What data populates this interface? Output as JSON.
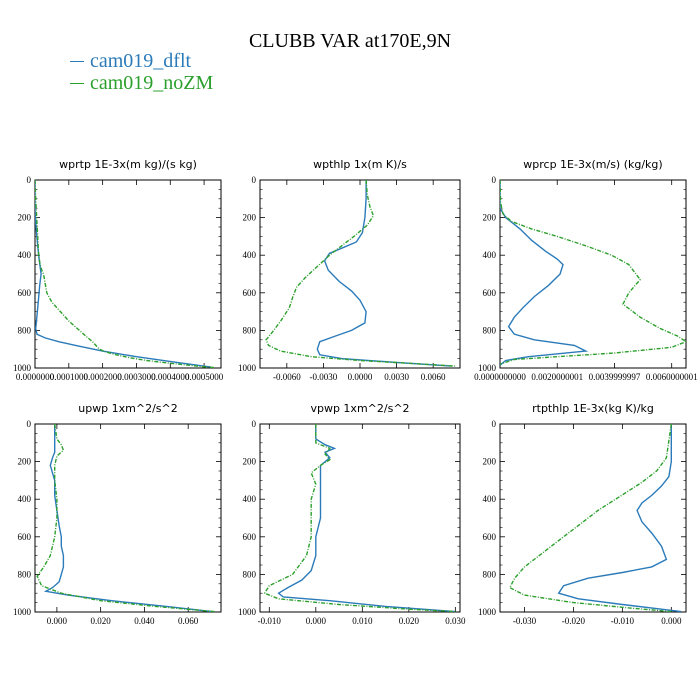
{
  "title": "CLUBB VAR at170E,9N",
  "legend": [
    {
      "name": "cam019_dflt",
      "color": "#2b7bba"
    },
    {
      "name": "cam019_noZM",
      "color": "#2ca02c"
    }
  ],
  "chart_data": [
    {
      "type": "line",
      "title": "wprtp  1E-3x(m kg)/(s kg)",
      "xlim": [
        0,
        0.00055
      ],
      "ylim": [
        1000,
        0
      ],
      "y_inverted": true,
      "xticks": [
        0,
        0.0001,
        0.0002,
        0.0003,
        0.0004,
        0.0005
      ],
      "xtick_labels": [
        "0.0000000",
        "0.0001000",
        "0.0002000",
        "0.0003000",
        "0.0004000",
        "0.0005000"
      ],
      "yticks": [
        0,
        200,
        400,
        600,
        800,
        1000
      ],
      "series": [
        {
          "name": "cam019_dflt",
          "color": "#2b7bba",
          "dashed": false,
          "x": [
            0,
            0,
            3e-06,
            8e-06,
            1.2e-05,
            1.5e-05,
            1.8e-05,
            1.4e-05,
            1e-05,
            6e-06,
            2e-06,
            6e-06,
            3e-05,
            7e-05,
            0.00012,
            0.0002,
            0.0003,
            0.00042,
            0.00052
          ],
          "y": [
            0,
            150,
            250,
            350,
            420,
            460,
            500,
            560,
            640,
            720,
            790,
            820,
            840,
            860,
            880,
            910,
            940,
            970,
            995
          ]
        },
        {
          "name": "cam019_noZM",
          "color": "#2ca02c",
          "dashed": true,
          "x": [
            0,
            2e-06,
            5e-06,
            8e-06,
            1.1e-05,
            1.5e-05,
            2e-05,
            2.5e-05,
            3.5e-05,
            5e-05,
            7.5e-05,
            0.0001,
            0.000125,
            0.00015,
            0.00017,
            0.00018,
            0.00019,
            0.00021,
            0.00024,
            0.00028,
            0.00033,
            0.0004,
            0.00048,
            0.00053
          ],
          "y": [
            0,
            100,
            200,
            300,
            400,
            450,
            480,
            500,
            600,
            650,
            700,
            750,
            790,
            830,
            860,
            880,
            900,
            915,
            930,
            945,
            960,
            975,
            990,
            998
          ]
        }
      ]
    },
    {
      "type": "line",
      "title": "wpthlp  1x(m K)/s",
      "xlim": [
        -0.0082,
        0.0082
      ],
      "ylim": [
        1000,
        0
      ],
      "y_inverted": true,
      "xticks": [
        -0.006,
        -0.003,
        0,
        0.003,
        0.006
      ],
      "xtick_labels": [
        "-0.0060",
        "-0.0030",
        "0.0000",
        "0.0030",
        "0.0060"
      ],
      "yticks": [
        0,
        200,
        400,
        600,
        800,
        1000
      ],
      "series": [
        {
          "name": "cam019_dflt",
          "color": "#2b7bba",
          "dashed": false,
          "x": [
            0.0005,
            0.0005,
            0.0004,
            0.0002,
            -0.0003,
            -0.0014,
            -0.0025,
            -0.0029,
            -0.0026,
            -0.0017,
            -0.0007,
            0,
            0.0005,
            0.0004,
            -0.0007,
            -0.002,
            -0.0033,
            -0.0035,
            -0.0033,
            -0.0015,
            0.003,
            0.0075
          ],
          "y": [
            0,
            100,
            200,
            280,
            330,
            360,
            390,
            430,
            480,
            540,
            590,
            640,
            700,
            760,
            800,
            830,
            860,
            900,
            930,
            950,
            970,
            990
          ]
        },
        {
          "name": "cam019_noZM",
          "color": "#2ca02c",
          "dashed": true,
          "x": [
            0.0005,
            0.0006,
            0.0008,
            0.0011,
            0.0006,
            -0.0005,
            -0.0015,
            -0.0025,
            -0.0035,
            -0.0045,
            -0.0052,
            -0.0055,
            -0.0058,
            -0.0065,
            -0.0072,
            -0.0077,
            -0.0075,
            -0.0065,
            -0.004,
            0,
            0.004,
            0.0078
          ],
          "y": [
            0,
            80,
            140,
            190,
            240,
            300,
            350,
            400,
            460,
            520,
            570,
            620,
            680,
            750,
            810,
            850,
            880,
            910,
            940,
            960,
            975,
            990
          ]
        }
      ]
    },
    {
      "type": "line",
      "title": "wprcp  1E-3x(m/s) (kg/kg)",
      "xlim": [
        0,
        0.0065
      ],
      "ylim": [
        1000,
        0
      ],
      "y_inverted": true,
      "xticks": [
        0,
        0.002,
        0.004,
        0.006
      ],
      "xtick_labels": [
        "0.0000000000",
        "0.0020000001",
        "0.0039999997",
        "0.0060000001"
      ],
      "yticks": [
        0,
        200,
        400,
        600,
        800,
        1000
      ],
      "series": [
        {
          "name": "cam019_dflt",
          "color": "#2b7bba",
          "dashed": false,
          "x": [
            0,
            0,
            0.0002,
            0.0007,
            0.0011,
            0.0016,
            0.002,
            0.0022,
            0.0021,
            0.0017,
            0.0012,
            0.0008,
            0.0005,
            0.0003,
            0.0005,
            0.0012,
            0.0026,
            0.003,
            0.001,
            0.0002,
            0
          ],
          "y": [
            0,
            150,
            200,
            260,
            320,
            380,
            420,
            450,
            500,
            560,
            620,
            680,
            730,
            780,
            820,
            850,
            880,
            910,
            940,
            960,
            985
          ]
        },
        {
          "name": "cam019_noZM",
          "color": "#2ca02c",
          "dashed": true,
          "x": [
            0,
            2e-05,
            0.0001,
            0.0004,
            0.0011,
            0.002,
            0.003,
            0.0039,
            0.0045,
            0.0049,
            0.0045,
            0.0043,
            0.0049,
            0.0056,
            0.0062,
            0.0065,
            0.006,
            0.004,
            0.002,
            0.0005,
            0
          ],
          "y": [
            0,
            120,
            180,
            220,
            260,
            300,
            350,
            400,
            450,
            530,
            600,
            660,
            730,
            790,
            830,
            860,
            890,
            920,
            940,
            955,
            980
          ]
        }
      ]
    },
    {
      "type": "line",
      "title": "upwp  1xm^2/s^2",
      "xlim": [
        -0.01,
        0.075
      ],
      "ylim": [
        1000,
        0
      ],
      "y_inverted": true,
      "xticks": [
        0,
        0.02,
        0.04,
        0.06
      ],
      "xtick_labels": [
        "0.000",
        "0.020",
        "0.040",
        "0.060"
      ],
      "yticks": [
        0,
        200,
        400,
        600,
        800,
        1000
      ],
      "series": [
        {
          "name": "cam019_dflt",
          "color": "#2b7bba",
          "dashed": false,
          "x": [
            -0.001,
            -0.001,
            -0.001,
            -0.002,
            -0.003,
            -0.002,
            -0.001,
            -0.001,
            0,
            0.001,
            0.002,
            0.002,
            0.003,
            0.003,
            0.002,
            0.001,
            -0.002,
            -0.005,
            0.005,
            0.025,
            0.05,
            0.071
          ],
          "y": [
            0,
            100,
            150,
            180,
            220,
            260,
            300,
            380,
            460,
            540,
            600,
            650,
            700,
            760,
            800,
            840,
            870,
            890,
            910,
            940,
            970,
            998
          ]
        },
        {
          "name": "cam019_noZM",
          "color": "#2ca02c",
          "dashed": true,
          "x": [
            -0.001,
            0,
            0.002,
            0.003,
            0,
            -0.001,
            -0.001,
            0,
            0,
            -0.001,
            -0.003,
            -0.006,
            -0.009,
            -0.007,
            0.002,
            0.02,
            0.045,
            0.072
          ],
          "y": [
            0,
            80,
            110,
            140,
            170,
            220,
            300,
            400,
            500,
            600,
            700,
            760,
            810,
            860,
            900,
            940,
            970,
            998
          ]
        }
      ]
    },
    {
      "type": "line",
      "title": "vpwp  1xm^2/s^2",
      "xlim": [
        -0.012,
        0.031
      ],
      "ylim": [
        1000,
        0
      ],
      "y_inverted": true,
      "xticks": [
        -0.01,
        0,
        0.01,
        0.02,
        0.03
      ],
      "xtick_labels": [
        "-0.010",
        "0.000",
        "0.010",
        "0.020",
        "0.030"
      ],
      "yticks": [
        0,
        200,
        400,
        600,
        800,
        1000
      ],
      "series": [
        {
          "name": "cam019_dflt",
          "color": "#2b7bba",
          "dashed": false,
          "x": [
            0,
            0,
            0.002,
            0.004,
            0.002,
            0.003,
            0.001,
            0.001,
            0.001,
            0.001,
            0,
            0,
            -0.001,
            -0.003,
            -0.006,
            -0.008,
            -0.007,
            0.003,
            0.015,
            0.03
          ],
          "y": [
            0,
            80,
            110,
            130,
            150,
            180,
            220,
            300,
            400,
            500,
            600,
            700,
            780,
            830,
            870,
            900,
            920,
            940,
            970,
            998
          ]
        },
        {
          "name": "cam019_noZM",
          "color": "#2ca02c",
          "dashed": true,
          "x": [
            0,
            0,
            0.003,
            0.002,
            0.003,
            0.001,
            -0.001,
            0,
            -0.001,
            -0.001,
            -0.001,
            -0.002,
            -0.005,
            -0.01,
            -0.011,
            -0.008,
            0.005,
            0.02,
            0.03
          ],
          "y": [
            0,
            100,
            130,
            160,
            190,
            220,
            260,
            320,
            400,
            500,
            600,
            700,
            800,
            860,
            900,
            930,
            960,
            985,
            998
          ]
        }
      ]
    },
    {
      "type": "line",
      "title": "rtpthlp  1E-3x(kg K)/kg",
      "xlim": [
        -0.035,
        0.003
      ],
      "ylim": [
        1000,
        0
      ],
      "y_inverted": true,
      "xticks": [
        -0.03,
        -0.02,
        -0.01,
        0
      ],
      "xtick_labels": [
        "-0.030",
        "-0.020",
        "-0.010",
        "0.000"
      ],
      "yticks": [
        0,
        200,
        400,
        600,
        800,
        1000
      ],
      "series": [
        {
          "name": "cam019_dflt",
          "color": "#2b7bba",
          "dashed": false,
          "x": [
            0,
            0,
            -0.0005,
            -0.002,
            -0.004,
            -0.006,
            -0.007,
            -0.006,
            -0.004,
            -0.002,
            -0.001,
            -0.004,
            -0.01,
            -0.017,
            -0.022,
            -0.023,
            -0.019,
            -0.01,
            -0.002,
            0.002
          ],
          "y": [
            0,
            200,
            280,
            330,
            380,
            420,
            460,
            520,
            580,
            650,
            720,
            760,
            790,
            820,
            860,
            900,
            930,
            960,
            985,
            998
          ]
        },
        {
          "name": "cam019_noZM",
          "color": "#2ca02c",
          "dashed": true,
          "x": [
            0,
            -0.001,
            -0.003,
            -0.006,
            -0.009,
            -0.012,
            -0.015,
            -0.018,
            -0.022,
            -0.026,
            -0.03,
            -0.032,
            -0.033,
            -0.03,
            -0.02,
            -0.008,
            0
          ],
          "y": [
            0,
            180,
            250,
            310,
            360,
            410,
            460,
            520,
            600,
            680,
            760,
            820,
            870,
            910,
            950,
            980,
            998
          ]
        }
      ]
    }
  ]
}
